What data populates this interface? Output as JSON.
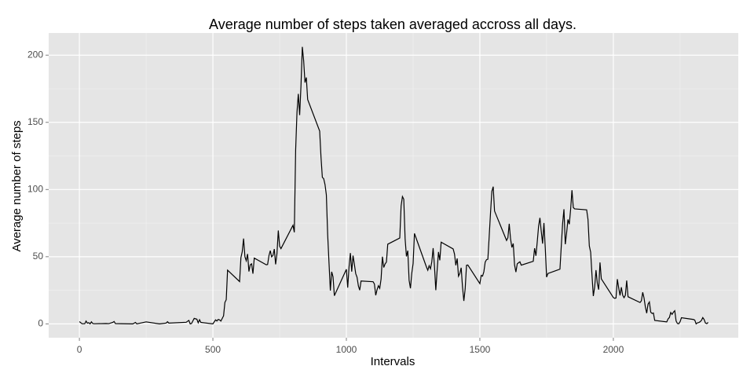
{
  "chart_data": {
    "type": "line",
    "title": "Average number of steps taken averaged accross all days.",
    "x_label": "Intervals",
    "y_label": "Average number of steps",
    "x": [
      0,
      10,
      20,
      25,
      30,
      35,
      40,
      45,
      50,
      55,
      100,
      110,
      125,
      130,
      135,
      200,
      210,
      215,
      250,
      300,
      325,
      330,
      335,
      400,
      410,
      415,
      420,
      430,
      440,
      445,
      450,
      455,
      500,
      510,
      515,
      520,
      525,
      530,
      540,
      545,
      550,
      555,
      600,
      605,
      610,
      615,
      620,
      625,
      630,
      635,
      640,
      645,
      650,
      655,
      700,
      705,
      710,
      715,
      720,
      725,
      730,
      735,
      740,
      745,
      750,
      755,
      800,
      805,
      810,
      815,
      820,
      825,
      830,
      835,
      840,
      845,
      850,
      855,
      900,
      905,
      910,
      915,
      920,
      925,
      930,
      935,
      940,
      945,
      950,
      955,
      1000,
      1005,
      1010,
      1015,
      1020,
      1025,
      1030,
      1035,
      1040,
      1045,
      1050,
      1055,
      1100,
      1105,
      1110,
      1115,
      1120,
      1125,
      1130,
      1135,
      1140,
      1145,
      1150,
      1155,
      1200,
      1205,
      1210,
      1215,
      1220,
      1225,
      1230,
      1235,
      1240,
      1245,
      1250,
      1255,
      1300,
      1305,
      1310,
      1315,
      1320,
      1325,
      1330,
      1335,
      1340,
      1345,
      1350,
      1355,
      1400,
      1405,
      1410,
      1415,
      1420,
      1425,
      1430,
      1435,
      1440,
      1445,
      1450,
      1455,
      1500,
      1505,
      1510,
      1515,
      1520,
      1525,
      1530,
      1535,
      1540,
      1545,
      1550,
      1555,
      1600,
      1605,
      1610,
      1615,
      1620,
      1625,
      1630,
      1635,
      1640,
      1645,
      1650,
      1655,
      1700,
      1705,
      1710,
      1715,
      1720,
      1725,
      1730,
      1735,
      1740,
      1745,
      1750,
      1755,
      1800,
      1805,
      1810,
      1815,
      1820,
      1825,
      1830,
      1835,
      1840,
      1845,
      1850,
      1855,
      1900,
      1905,
      1910,
      1915,
      1920,
      1925,
      1930,
      1935,
      1940,
      1945,
      1950,
      1955,
      2000,
      2005,
      2010,
      2015,
      2020,
      2025,
      2030,
      2035,
      2040,
      2045,
      2050,
      2055,
      2100,
      2105,
      2110,
      2115,
      2120,
      2125,
      2130,
      2135,
      2140,
      2145,
      2150,
      2155,
      2200,
      2205,
      2210,
      2215,
      2220,
      2225,
      2230,
      2235,
      2240,
      2245,
      2250,
      2255,
      2300,
      2305,
      2310,
      2315,
      2320,
      2325,
      2330,
      2335,
      2340,
      2345,
      2350,
      2355
    ],
    "series": [
      {
        "name": "steps",
        "color": "#000000",
        "values": [
          1.7,
          0.1,
          0.1,
          2.1,
          0.5,
          0.9,
          0,
          1.5,
          0.3,
          0.1,
          0.3,
          0.2,
          1.1,
          1.8,
          0.2,
          0,
          1.1,
          0,
          1.5,
          0,
          0.6,
          1.6,
          0.6,
          1.2,
          2.6,
          0,
          0.3,
          4.1,
          3.5,
          0.8,
          3.1,
          1.1,
          0,
          3,
          2.2,
          3.3,
          3,
          2.1,
          6,
          16,
          18,
          40,
          31.5,
          49.3,
          53.8,
          63.5,
          50,
          47,
          52,
          39,
          44,
          44.7,
          37.4,
          49,
          44,
          44.2,
          50.8,
          54.5,
          49.9,
          51,
          55.7,
          44.3,
          52.3,
          69.5,
          57.8,
          56,
          73.4,
          68.2,
          129.4,
          157.5,
          171.2,
          155.4,
          177.3,
          206.2,
          195.9,
          179.6,
          183.4,
          167,
          143.5,
          124,
          109.1,
          108.1,
          103.7,
          96,
          66.2,
          45.2,
          24.8,
          38.8,
          35,
          21,
          40.6,
          27,
          42.4,
          52.7,
          38.9,
          50.8,
          44.3,
          37.4,
          34.7,
          28.3,
          25.1,
          31.9,
          31.4,
          29.7,
          21.3,
          25.5,
          28.4,
          26.5,
          33.4,
          50,
          42,
          44.6,
          46,
          59.3,
          63.9,
          87.7,
          94.8,
          92.8,
          63.4,
          50.2,
          54.5,
          32.4,
          26.5,
          37.7,
          45,
          67.3,
          42.3,
          39.9,
          43.3,
          41,
          46.2,
          56.4,
          42.8,
          25.1,
          40,
          53.5,
          47.3,
          60.8,
          55.8,
          52,
          43.6,
          48.7,
          35.5,
          37.5,
          41.8,
          27.5,
          17.1,
          26.1,
          43.6,
          43.8,
          30,
          36.1,
          35.5,
          38.8,
          46,
          47.8,
          48.1,
          65.3,
          82.9,
          98.7,
          102.1,
          84,
          62.1,
          64.1,
          74.5,
          63.2,
          56.9,
          59.8,
          43.9,
          38.6,
          44.7,
          45.5,
          46.2,
          43.7,
          46.6,
          56.3,
          50.7,
          61.2,
          72.7,
          78.9,
          68.9,
          59.7,
          75.1,
          56.5,
          34.8,
          37.5,
          40.7,
          58,
          74.7,
          85.3,
          59.3,
          67.8,
          77.7,
          74.2,
          85.3,
          99.5,
          86.6,
          85.6,
          84.9,
          77.8,
          58,
          53.4,
          36.3,
          20.7,
          27.4,
          40,
          30.2,
          25.5,
          45.7,
          33.5,
          19.6,
          19,
          19.3,
          33.3,
          26.8,
          21.2,
          27.3,
          21.3,
          19.5,
          21.3,
          32.3,
          20.2,
          15.9,
          17.2,
          23.5,
          19.2,
          12.5,
          8,
          14.7,
          16.3,
          8.7,
          7.8,
          8.1,
          2.6,
          1.5,
          3.7,
          4.8,
          8.5,
          7.1,
          8.7,
          9.8,
          2.2,
          0.3,
          0.1,
          1.6,
          4.6,
          3.3,
          2.8,
          0,
          0.8,
          1,
          1.6,
          2.6,
          4.7,
          3.3,
          0.6,
          0.2,
          1.1
        ]
      }
    ],
    "xlim": [
      -115,
      2468
    ],
    "ylim": [
      -10.3,
      216.5
    ],
    "xticks": [
      0,
      500,
      1000,
      1500,
      2000
    ],
    "yticks": [
      0,
      50,
      100,
      150,
      200
    ],
    "x_minor_ticks": [
      250,
      750,
      1250,
      1750,
      2250
    ],
    "y_minor_ticks": [
      25,
      75,
      125,
      175
    ],
    "grid": true
  }
}
